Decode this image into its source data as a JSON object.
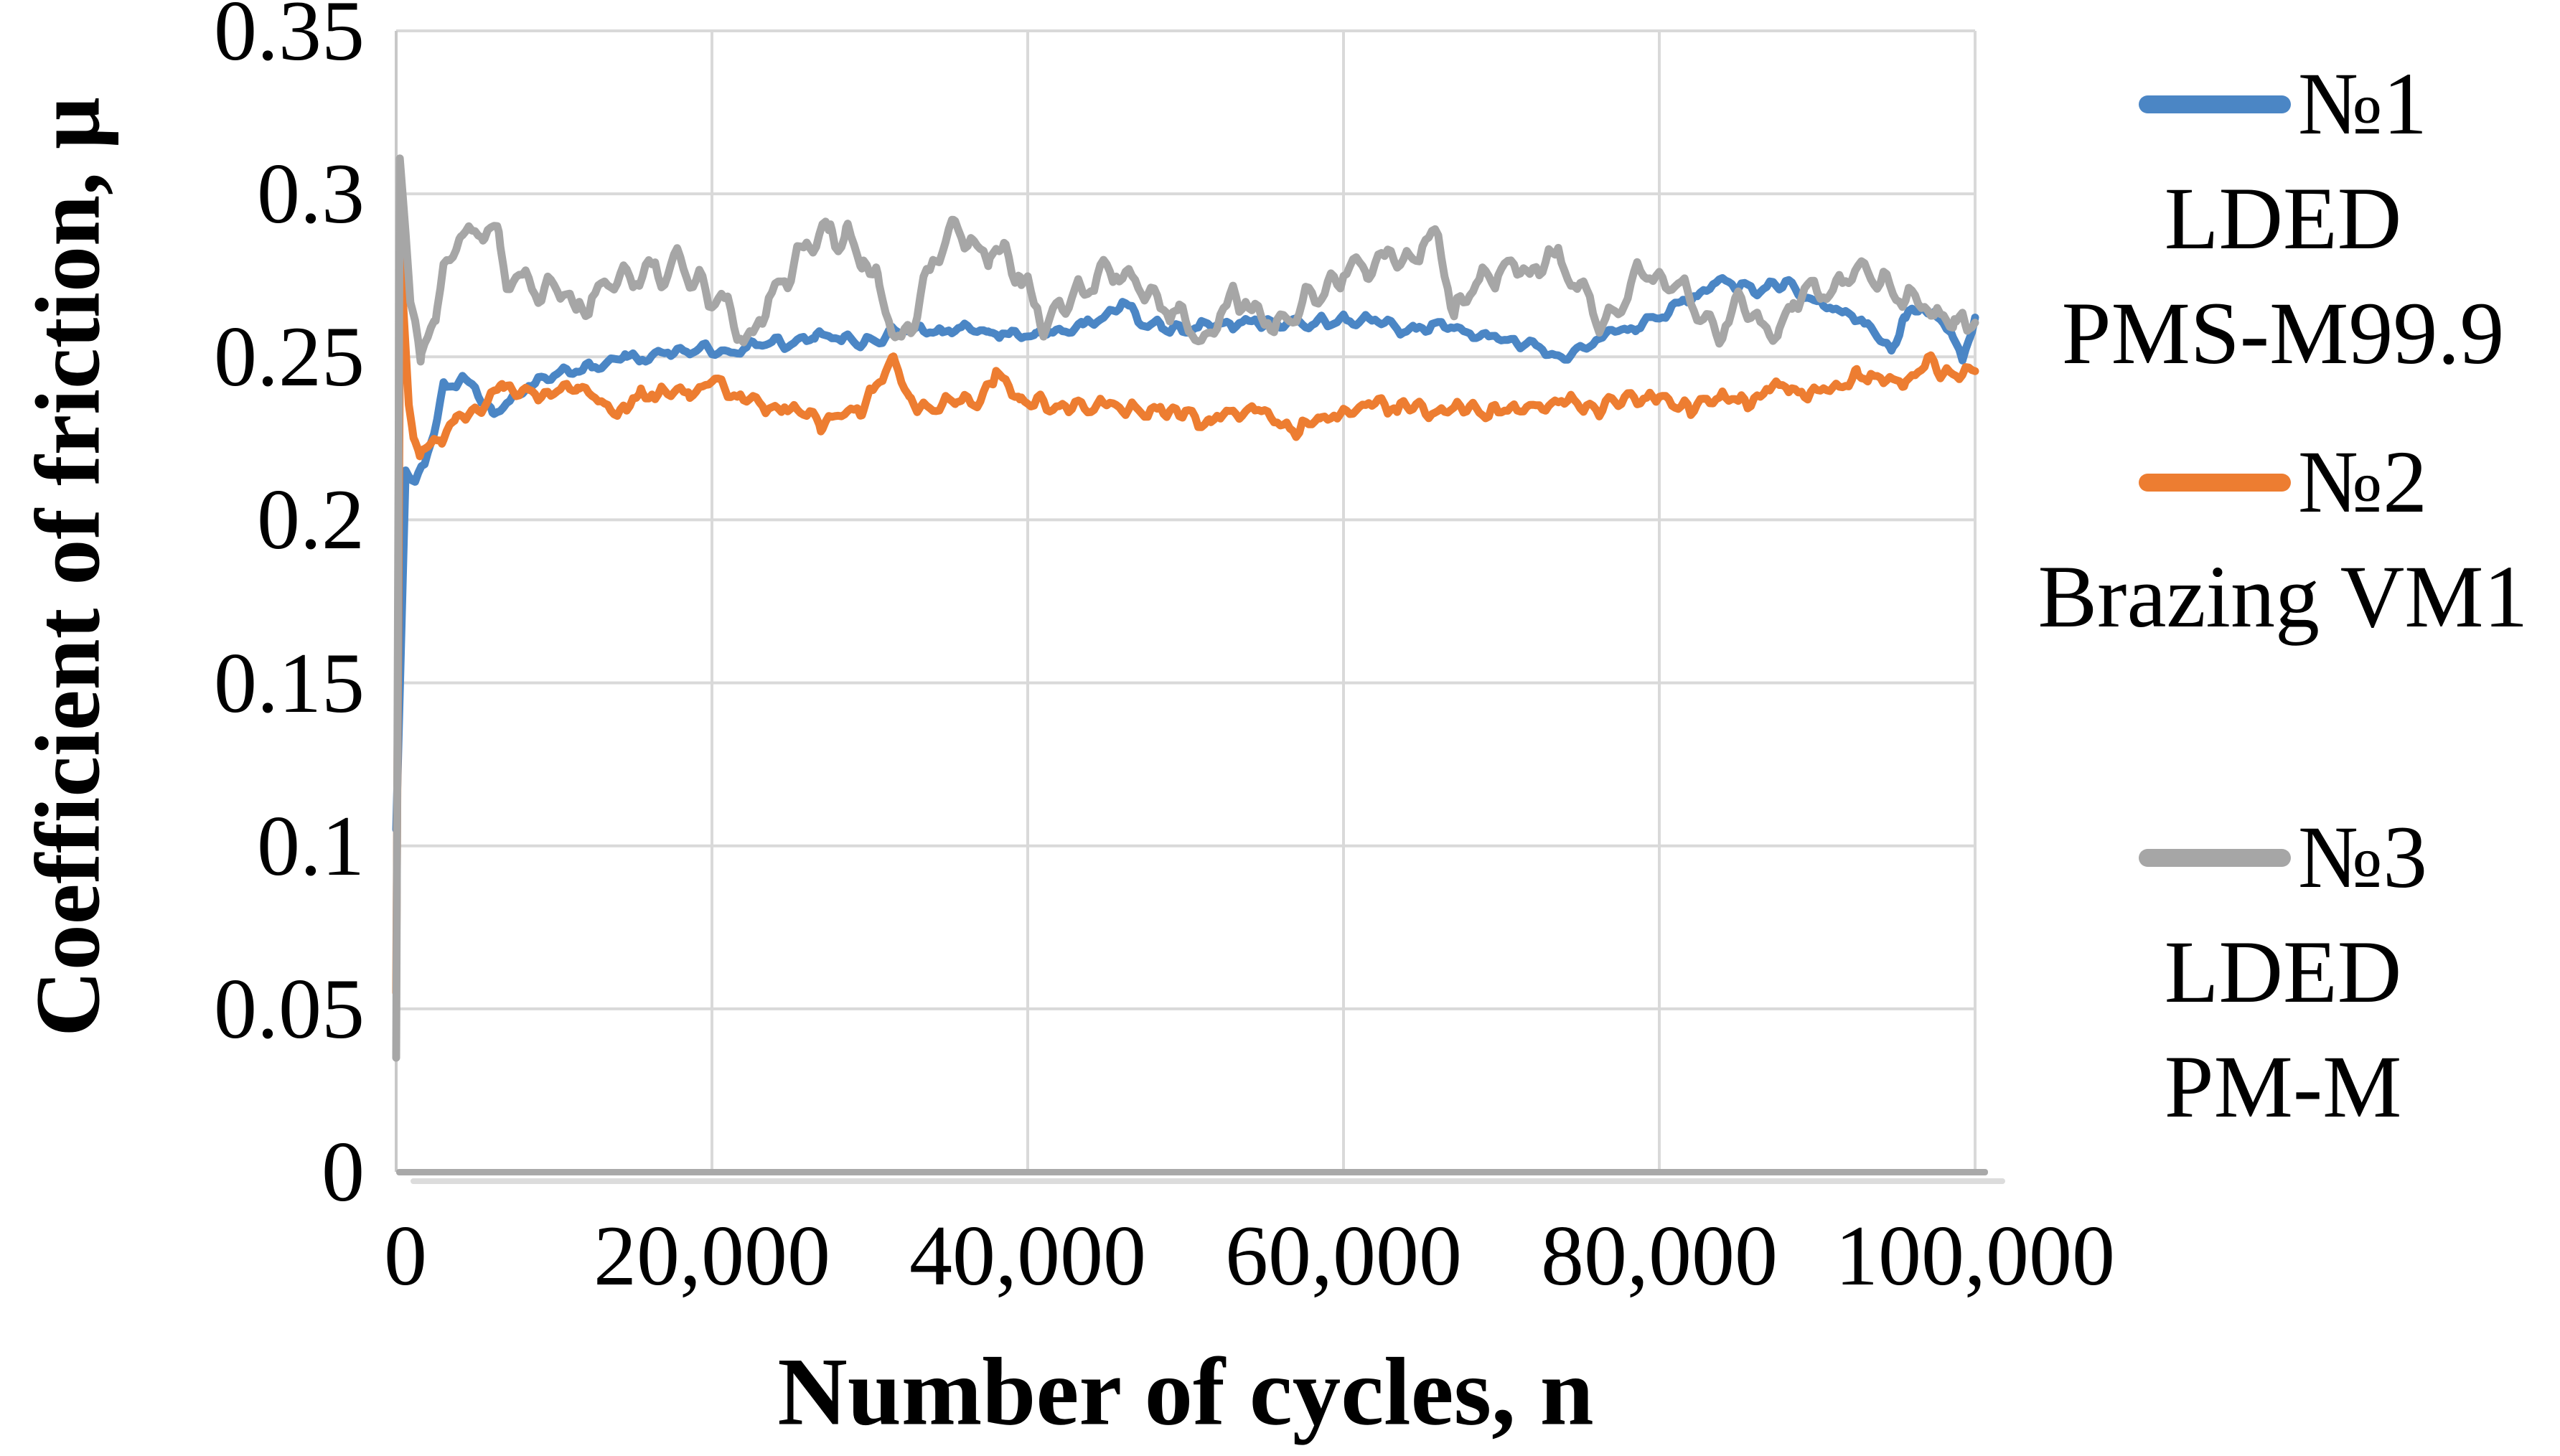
{
  "chart_data": {
    "type": "line",
    "title": "",
    "xlabel": "Number of cycles, n",
    "ylabel": "Coefficient of friction, μ",
    "xlim": [
      0,
      100000
    ],
    "ylim": [
      0,
      0.35
    ],
    "grid": true,
    "legend_position": "right",
    "x_ticks": [
      {
        "value": 0,
        "label": "0"
      },
      {
        "value": 20000,
        "label": "20,000"
      },
      {
        "value": 40000,
        "label": "40,000"
      },
      {
        "value": 60000,
        "label": "60,000"
      },
      {
        "value": 80000,
        "label": "80,000"
      },
      {
        "value": 100000,
        "label": "100,000"
      }
    ],
    "y_ticks": [
      {
        "value": 0,
        "label": "0"
      },
      {
        "value": 0.05,
        "label": "0.05"
      },
      {
        "value": 0.1,
        "label": "0.1"
      },
      {
        "value": 0.15,
        "label": "0.15"
      },
      {
        "value": 0.2,
        "label": "0.2"
      },
      {
        "value": 0.25,
        "label": "0.25"
      },
      {
        "value": 0.3,
        "label": "0.3"
      },
      {
        "value": 0.35,
        "label": "0.35"
      }
    ],
    "colors": {
      "series1": "#4B86C5",
      "series2": "#ED7D31",
      "series3": "#A6A6A6",
      "gridline": "#D9D9D9",
      "axis_line": "#A9A9A9",
      "axis_shadow": "#DCDCDC",
      "plot_border": "#C8C8C8"
    },
    "series": [
      {
        "name": "№1 LDED PMS-M99.9",
        "color": "#4B86C5",
        "noise_amp": 0.0016,
        "wobble_amp": 0.0012,
        "wobble_period": 1500,
        "seed": 11,
        "anchors": [
          [
            0,
            0.105
          ],
          [
            600,
            0.215
          ],
          [
            1200,
            0.212
          ],
          [
            1800,
            0.217
          ],
          [
            3000,
            0.24
          ],
          [
            4000,
            0.243
          ],
          [
            5000,
            0.241
          ],
          [
            6100,
            0.232
          ],
          [
            7000,
            0.236
          ],
          [
            9000,
            0.243
          ],
          [
            11500,
            0.2465
          ],
          [
            13000,
            0.2475
          ],
          [
            14500,
            0.2505
          ],
          [
            16000,
            0.2495
          ],
          [
            18000,
            0.2525
          ],
          [
            20000,
            0.2525
          ],
          [
            21000,
            0.2505
          ],
          [
            23000,
            0.254
          ],
          [
            25000,
            0.2545
          ],
          [
            26500,
            0.2565
          ],
          [
            28000,
            0.2555
          ],
          [
            30000,
            0.2545
          ],
          [
            31500,
            0.2575
          ],
          [
            33000,
            0.2585
          ],
          [
            34500,
            0.2575
          ],
          [
            36000,
            0.2585
          ],
          [
            37500,
            0.2575
          ],
          [
            39000,
            0.2565
          ],
          [
            40500,
            0.2575
          ],
          [
            42000,
            0.2585
          ],
          [
            43500,
            0.2595
          ],
          [
            45000,
            0.2625
          ],
          [
            46000,
            0.2665
          ],
          [
            47000,
            0.2615
          ],
          [
            48500,
            0.2585
          ],
          [
            50000,
            0.2585
          ],
          [
            52000,
            0.2595
          ],
          [
            54000,
            0.2605
          ],
          [
            56000,
            0.2595
          ],
          [
            58000,
            0.2605
          ],
          [
            60000,
            0.2615
          ],
          [
            62000,
            0.2605
          ],
          [
            64000,
            0.2585
          ],
          [
            66000,
            0.2595
          ],
          [
            68000,
            0.2575
          ],
          [
            70000,
            0.2555
          ],
          [
            72000,
            0.2535
          ],
          [
            74000,
            0.249
          ],
          [
            75000,
            0.2525
          ],
          [
            76000,
            0.2545
          ],
          [
            77000,
            0.2575
          ],
          [
            78500,
            0.2595
          ],
          [
            80000,
            0.2625
          ],
          [
            81500,
            0.2665
          ],
          [
            83000,
            0.2705
          ],
          [
            84000,
            0.274
          ],
          [
            85000,
            0.2725
          ],
          [
            86000,
            0.2705
          ],
          [
            87000,
            0.2715
          ],
          [
            88000,
            0.2725
          ],
          [
            89000,
            0.2695
          ],
          [
            90000,
            0.2665
          ],
          [
            91000,
            0.2645
          ],
          [
            92000,
            0.2625
          ],
          [
            93000,
            0.2605
          ],
          [
            94000,
            0.2565
          ],
          [
            94700,
            0.2515
          ],
          [
            95500,
            0.2625
          ],
          [
            96500,
            0.2655
          ],
          [
            97500,
            0.2625
          ],
          [
            98500,
            0.259
          ],
          [
            99200,
            0.249
          ],
          [
            99600,
            0.2555
          ],
          [
            100000,
            0.262
          ]
        ]
      },
      {
        "name": "№2 Brazing VM1",
        "color": "#ED7D31",
        "noise_amp": 0.0022,
        "wobble_amp": 0.0014,
        "wobble_period": 1200,
        "seed": 23,
        "anchors": [
          [
            0,
            0.055
          ],
          [
            270,
            0.281
          ],
          [
            800,
            0.235
          ],
          [
            1100,
            0.2245
          ],
          [
            1500,
            0.2205
          ],
          [
            2000,
            0.2235
          ],
          [
            2900,
            0.2245
          ],
          [
            3700,
            0.2305
          ],
          [
            5000,
            0.234
          ],
          [
            6000,
            0.2375
          ],
          [
            6700,
            0.2405
          ],
          [
            8000,
            0.2385
          ],
          [
            9000,
            0.2375
          ],
          [
            10000,
            0.2395
          ],
          [
            11500,
            0.24
          ],
          [
            13000,
            0.2365
          ],
          [
            14000,
            0.2325
          ],
          [
            15500,
            0.2385
          ],
          [
            17000,
            0.2375
          ],
          [
            18500,
            0.2395
          ],
          [
            20000,
            0.2435
          ],
          [
            22000,
            0.2375
          ],
          [
            24000,
            0.2345
          ],
          [
            26000,
            0.2335
          ],
          [
            26900,
            0.228
          ],
          [
            28000,
            0.2325
          ],
          [
            29500,
            0.2335
          ],
          [
            31500,
            0.251
          ],
          [
            32500,
            0.2355
          ],
          [
            34000,
            0.2335
          ],
          [
            35500,
            0.2375
          ],
          [
            37000,
            0.2365
          ],
          [
            38000,
            0.246
          ],
          [
            39500,
            0.2365
          ],
          [
            41000,
            0.2355
          ],
          [
            43000,
            0.234
          ],
          [
            45000,
            0.2355
          ],
          [
            47000,
            0.2345
          ],
          [
            49000,
            0.2335
          ],
          [
            51500,
            0.23
          ],
          [
            53000,
            0.2325
          ],
          [
            55000,
            0.2335
          ],
          [
            57000,
            0.2265
          ],
          [
            58500,
            0.2315
          ],
          [
            60000,
            0.2325
          ],
          [
            62000,
            0.2355
          ],
          [
            64000,
            0.234
          ],
          [
            66000,
            0.2335
          ],
          [
            68000,
            0.2345
          ],
          [
            70000,
            0.2335
          ],
          [
            72000,
            0.2355
          ],
          [
            74000,
            0.2365
          ],
          [
            76000,
            0.2345
          ],
          [
            78000,
            0.2365
          ],
          [
            80000,
            0.2375
          ],
          [
            82000,
            0.2345
          ],
          [
            84000,
            0.2375
          ],
          [
            86000,
            0.2365
          ],
          [
            87500,
            0.2415
          ],
          [
            89000,
            0.238
          ],
          [
            91000,
            0.2405
          ],
          [
            92500,
            0.2435
          ],
          [
            94000,
            0.2445
          ],
          [
            95500,
            0.2425
          ],
          [
            97000,
            0.249
          ],
          [
            98000,
            0.2445
          ],
          [
            99000,
            0.2435
          ],
          [
            100000,
            0.2455
          ]
        ]
      },
      {
        "name": "№3 LDED PM-M",
        "color": "#A6A6A6",
        "noise_amp": 0.0032,
        "wobble_amp": 0.0036,
        "wobble_period": 1600,
        "seed": 37,
        "anchors": [
          [
            0,
            0.035
          ],
          [
            230,
            0.311
          ],
          [
            900,
            0.27
          ],
          [
            1550,
            0.247
          ],
          [
            2500,
            0.262
          ],
          [
            3000,
            0.275
          ],
          [
            4100,
            0.288
          ],
          [
            5000,
            0.2875
          ],
          [
            5500,
            0.289
          ],
          [
            6500,
            0.285
          ],
          [
            7000,
            0.272
          ],
          [
            8000,
            0.2755
          ],
          [
            9000,
            0.269
          ],
          [
            10000,
            0.2715
          ],
          [
            11000,
            0.2675
          ],
          [
            11500,
            0.264
          ],
          [
            13000,
            0.2705
          ],
          [
            14000,
            0.2745
          ],
          [
            15000,
            0.2725
          ],
          [
            16000,
            0.2775
          ],
          [
            17000,
            0.2755
          ],
          [
            17800,
            0.281
          ],
          [
            19000,
            0.272
          ],
          [
            20000,
            0.2685
          ],
          [
            21000,
            0.266
          ],
          [
            22000,
            0.2535
          ],
          [
            23000,
            0.262
          ],
          [
            24000,
            0.2715
          ],
          [
            25000,
            0.2765
          ],
          [
            26000,
            0.2835
          ],
          [
            27500,
            0.2895
          ],
          [
            28500,
            0.2865
          ],
          [
            29500,
            0.2805
          ],
          [
            30500,
            0.2715
          ],
          [
            31000,
            0.2645
          ],
          [
            32000,
            0.2525
          ],
          [
            33000,
            0.2655
          ],
          [
            34000,
            0.2785
          ],
          [
            35300,
            0.288
          ],
          [
            36500,
            0.2845
          ],
          [
            37500,
            0.2805
          ],
          [
            38500,
            0.2825
          ],
          [
            39500,
            0.2745
          ],
          [
            41000,
            0.2605
          ],
          [
            42000,
            0.2655
          ],
          [
            43500,
            0.2705
          ],
          [
            45500,
            0.277
          ],
          [
            47000,
            0.2735
          ],
          [
            48000,
            0.2685
          ],
          [
            49500,
            0.2635
          ],
          [
            51000,
            0.2515
          ],
          [
            52000,
            0.2625
          ],
          [
            53000,
            0.27
          ],
          [
            54000,
            0.2655
          ],
          [
            55000,
            0.2615
          ],
          [
            56000,
            0.258
          ],
          [
            57500,
            0.2655
          ],
          [
            59000,
            0.2705
          ],
          [
            60000,
            0.275
          ],
          [
            61500,
            0.2765
          ],
          [
            63000,
            0.2815
          ],
          [
            64000,
            0.2775
          ],
          [
            65000,
            0.2835
          ],
          [
            66000,
            0.287
          ],
          [
            67000,
            0.263
          ],
          [
            68000,
            0.2715
          ],
          [
            69000,
            0.2755
          ],
          [
            70000,
            0.2765
          ],
          [
            71000,
            0.2785
          ],
          [
            72000,
            0.2745
          ],
          [
            73000,
            0.283
          ],
          [
            74000,
            0.2775
          ],
          [
            75000,
            0.2705
          ],
          [
            76600,
            0.259
          ],
          [
            78000,
            0.2695
          ],
          [
            79000,
            0.278
          ],
          [
            80000,
            0.2735
          ],
          [
            81000,
            0.272
          ],
          [
            82000,
            0.2655
          ],
          [
            83000,
            0.2615
          ],
          [
            84000,
            0.2575
          ],
          [
            85000,
            0.2675
          ],
          [
            86000,
            0.2605
          ],
          [
            87500,
            0.255
          ],
          [
            88500,
            0.2665
          ],
          [
            90000,
            0.2715
          ],
          [
            91000,
            0.2685
          ],
          [
            92000,
            0.2745
          ],
          [
            93000,
            0.279
          ],
          [
            94000,
            0.2735
          ],
          [
            95000,
            0.2695
          ],
          [
            96000,
            0.2675
          ],
          [
            97000,
            0.2645
          ],
          [
            98000,
            0.2625
          ],
          [
            98700,
            0.2625
          ],
          [
            99500,
            0.258
          ],
          [
            100000,
            0.262
          ]
        ]
      }
    ]
  },
  "legend": {
    "entries": [
      {
        "num": "№1",
        "line2": "LDED",
        "line3": "PMS-M99.9",
        "color": "#4B86C5"
      },
      {
        "num": "№2",
        "line2": "Brazing VM1",
        "color": "#ED7D31"
      },
      {
        "num": "№3",
        "line2": "LDED",
        "line3": "PM-M",
        "color": "#A6A6A6"
      }
    ]
  }
}
